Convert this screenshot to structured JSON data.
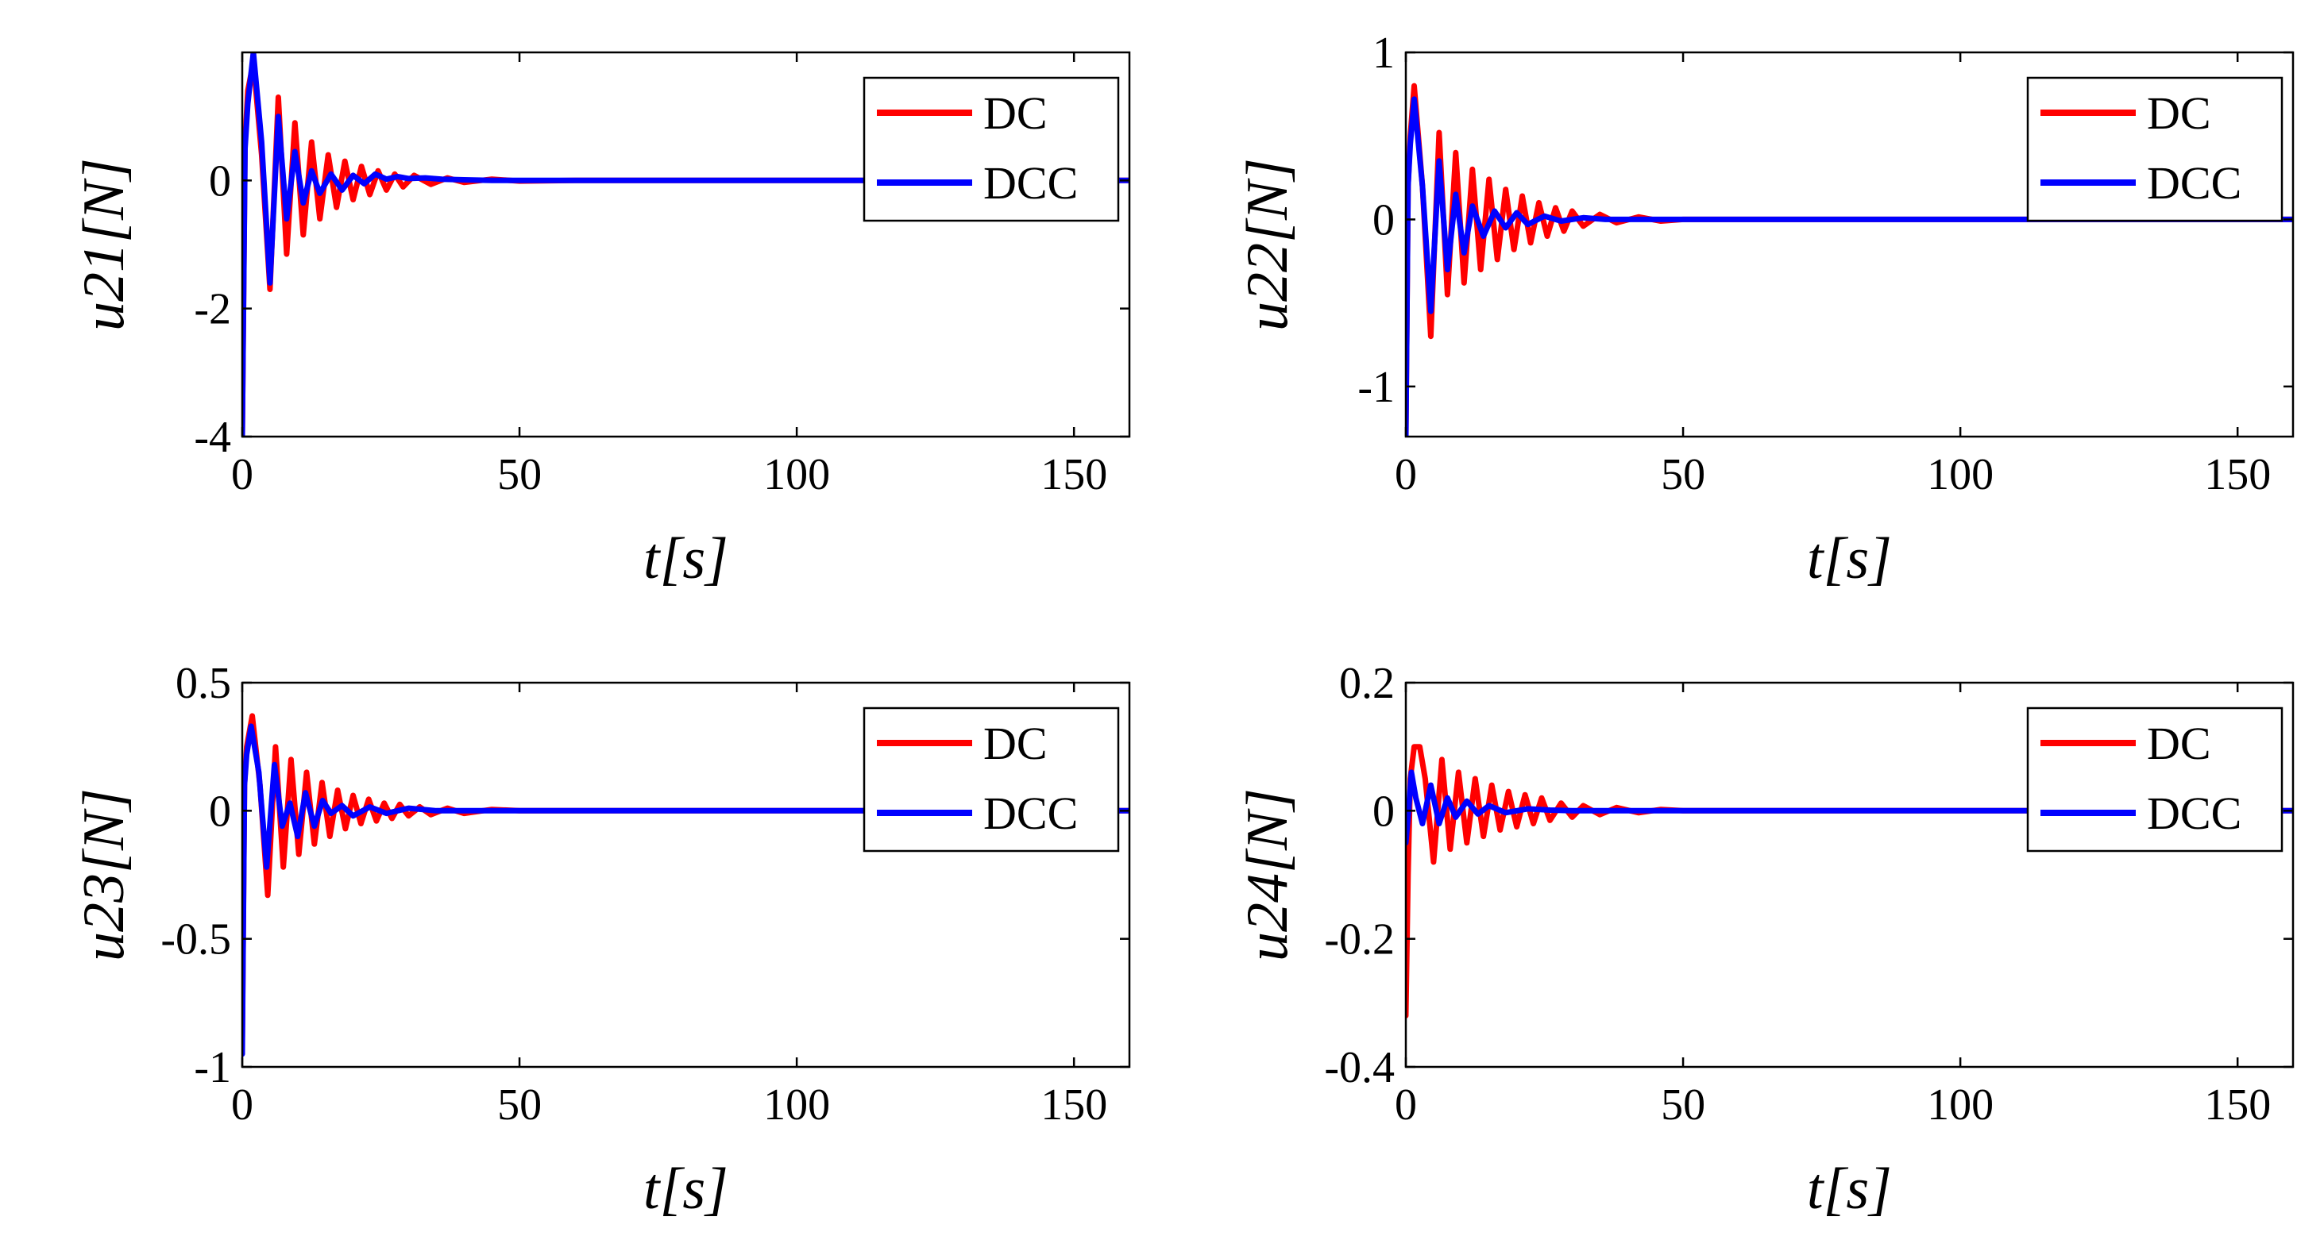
{
  "figure": {
    "background": "#ffffff"
  },
  "chart_data": [
    {
      "type": "line",
      "ylabel": "u21[N]",
      "xlabel": "t[s]",
      "xlim": [
        0,
        160
      ],
      "ylim": [
        -4,
        2
      ],
      "xticks": [
        0,
        50,
        100,
        150
      ],
      "xtick_labels": [
        "0",
        "50",
        "100",
        "150"
      ],
      "yticks": [
        -4,
        -2,
        0
      ],
      "ytick_labels": [
        "-4",
        "-2",
        "0"
      ],
      "legend": {
        "position": "top-right",
        "entries": [
          "DC",
          "DCC"
        ]
      },
      "series": [
        {
          "name": "DC",
          "color": "#ff0000",
          "x": [
            0,
            0.5,
            1,
            2,
            3.5,
            5,
            6.5,
            8,
            9.5,
            11,
            12.5,
            14,
            15.5,
            17,
            18.5,
            20,
            21.5,
            23,
            24.5,
            26,
            27.5,
            29,
            31,
            34,
            37,
            40,
            45,
            50,
            60,
            160
          ],
          "values": [
            -4,
            0.6,
            1.4,
            1.85,
            0.4,
            -1.7,
            1.3,
            -1.15,
            0.9,
            -0.85,
            0.6,
            -0.6,
            0.4,
            -0.42,
            0.3,
            -0.3,
            0.22,
            -0.22,
            0.15,
            -0.15,
            0.1,
            -0.1,
            0.08,
            -0.06,
            0.04,
            -0.03,
            0.02,
            -0.01,
            0,
            0
          ]
        },
        {
          "name": "DCC",
          "color": "#0000ff",
          "x": [
            0,
            0.5,
            1,
            2,
            3.5,
            5,
            6.5,
            8,
            9.5,
            11,
            12.5,
            14,
            16,
            18,
            20,
            22,
            24,
            26,
            28,
            30,
            33,
            36,
            40,
            45,
            50,
            160
          ],
          "values": [
            -4,
            0.5,
            1.2,
            2.0,
            0.6,
            -1.6,
            1.0,
            -0.6,
            0.45,
            -0.35,
            0.15,
            -0.2,
            0.1,
            -0.15,
            0.08,
            -0.05,
            0.1,
            0.02,
            0.06,
            0.03,
            0.04,
            0.02,
            0.01,
            0,
            0,
            0
          ]
        }
      ]
    },
    {
      "type": "line",
      "ylabel": "u22[N]",
      "xlabel": "t[s]",
      "xlim": [
        0,
        160
      ],
      "ylim": [
        -1.3,
        1
      ],
      "xticks": [
        0,
        50,
        100,
        150
      ],
      "xtick_labels": [
        "0",
        "50",
        "100",
        "150"
      ],
      "yticks": [
        -1,
        0,
        1
      ],
      "ytick_labels": [
        "-1",
        "0",
        "1"
      ],
      "legend": {
        "position": "top-right",
        "entries": [
          "DC",
          "DCC"
        ]
      },
      "series": [
        {
          "name": "DC",
          "color": "#ff0000",
          "x": [
            0,
            0.4,
            0.8,
            1.5,
            3,
            4.5,
            6,
            7.5,
            9,
            10.5,
            12,
            13.5,
            15,
            16.5,
            18,
            19.5,
            21,
            22.5,
            24,
            25.5,
            27,
            28.5,
            30,
            32,
            35,
            38,
            42,
            46,
            50,
            60,
            160
          ],
          "values": [
            -1.3,
            0.2,
            0.5,
            0.8,
            0.2,
            -0.7,
            0.52,
            -0.45,
            0.4,
            -0.38,
            0.3,
            -0.3,
            0.24,
            -0.24,
            0.18,
            -0.18,
            0.14,
            -0.14,
            0.1,
            -0.1,
            0.07,
            -0.07,
            0.05,
            -0.04,
            0.03,
            -0.02,
            0.015,
            -0.01,
            0,
            0,
            0
          ]
        },
        {
          "name": "DCC",
          "color": "#0000ff",
          "x": [
            0,
            0.4,
            0.8,
            1.5,
            3,
            4.5,
            6,
            7.5,
            9,
            10.5,
            12,
            14,
            16,
            18,
            20,
            22,
            25,
            28,
            32,
            36,
            42,
            50,
            160
          ],
          "values": [
            -1.3,
            0.2,
            0.45,
            0.72,
            0.2,
            -0.55,
            0.35,
            -0.3,
            0.15,
            -0.2,
            0.08,
            -0.1,
            0.05,
            -0.05,
            0.04,
            -0.03,
            0.02,
            -0.01,
            0.01,
            0,
            0,
            0,
            0
          ]
        }
      ]
    },
    {
      "type": "line",
      "ylabel": "u23[N]",
      "xlabel": "t[s]",
      "xlim": [
        0,
        160
      ],
      "ylim": [
        -1,
        0.5
      ],
      "xticks": [
        0,
        50,
        100,
        150
      ],
      "xtick_labels": [
        "0",
        "50",
        "100",
        "150"
      ],
      "yticks": [
        -1,
        -0.5,
        0,
        0.5
      ],
      "ytick_labels": [
        "-1",
        "-0.5",
        "0",
        "0.5"
      ],
      "legend": {
        "position": "top-right",
        "entries": [
          "DC",
          "DCC"
        ]
      },
      "series": [
        {
          "name": "DC",
          "color": "#ff0000",
          "x": [
            0,
            0.4,
            0.8,
            1.8,
            3.2,
            4.6,
            6,
            7.4,
            8.8,
            10.2,
            11.6,
            13,
            14.4,
            15.8,
            17.2,
            18.6,
            20,
            21.4,
            22.8,
            24.2,
            25.6,
            27,
            28.4,
            30,
            32,
            34,
            37,
            40,
            45,
            50,
            60,
            160
          ],
          "values": [
            -0.9,
            0.1,
            0.25,
            0.37,
            0.1,
            -0.33,
            0.25,
            -0.22,
            0.2,
            -0.17,
            0.15,
            -0.13,
            0.11,
            -0.1,
            0.08,
            -0.07,
            0.06,
            -0.05,
            0.045,
            -0.04,
            0.03,
            -0.03,
            0.025,
            -0.02,
            0.015,
            -0.015,
            0.01,
            -0.01,
            0.005,
            0,
            0,
            0
          ]
        },
        {
          "name": "DCC",
          "color": "#0000ff",
          "x": [
            0,
            0.4,
            0.8,
            1.6,
            3,
            4.4,
            5.8,
            7.2,
            8.6,
            10,
            11.4,
            13,
            14.5,
            16,
            18,
            20,
            23,
            26,
            30,
            35,
            40,
            50,
            160
          ],
          "values": [
            -0.95,
            0.1,
            0.22,
            0.33,
            0.15,
            -0.22,
            0.18,
            -0.06,
            0.03,
            -0.1,
            0.07,
            -0.06,
            0.04,
            -0.01,
            0.02,
            -0.02,
            0.015,
            -0.01,
            0.01,
            0,
            0,
            0,
            0
          ]
        }
      ]
    },
    {
      "type": "line",
      "ylabel": "u24[N]",
      "xlabel": "t[s]",
      "xlim": [
        0,
        160
      ],
      "ylim": [
        -0.4,
        0.2
      ],
      "xticks": [
        0,
        50,
        100,
        150
      ],
      "xtick_labels": [
        "0",
        "50",
        "100",
        "150"
      ],
      "yticks": [
        -0.4,
        -0.2,
        0,
        0.2
      ],
      "ytick_labels": [
        "-0.4",
        "-0.2",
        "0",
        "0.2"
      ],
      "legend": {
        "position": "top-right",
        "entries": [
          "DC",
          "DCC"
        ]
      },
      "series": [
        {
          "name": "DC",
          "color": "#ff0000",
          "x": [
            0,
            0.4,
            0.8,
            1.5,
            2.5,
            3.5,
            5,
            6.5,
            8,
            9.5,
            11,
            12.5,
            14,
            15.5,
            17,
            18.5,
            20,
            21.5,
            23,
            24.5,
            26,
            28,
            30,
            32,
            35,
            38,
            42,
            46,
            50,
            60,
            160
          ],
          "values": [
            -0.32,
            -0.1,
            0.05,
            0.1,
            0.1,
            0.05,
            -0.08,
            0.08,
            -0.06,
            0.06,
            -0.05,
            0.05,
            -0.04,
            0.04,
            -0.03,
            0.03,
            -0.025,
            0.025,
            -0.02,
            0.02,
            -0.015,
            0.012,
            -0.01,
            0.008,
            -0.006,
            0.005,
            -0.003,
            0.002,
            0,
            0,
            0
          ]
        },
        {
          "name": "DCC",
          "color": "#0000ff",
          "x": [
            0,
            0.5,
            1,
            1.8,
            3,
            4.5,
            6,
            7.5,
            9,
            11,
            13,
            15,
            18,
            22,
            26,
            30,
            40,
            50,
            160
          ],
          "values": [
            -0.05,
            0.0,
            0.06,
            0.02,
            -0.02,
            0.04,
            -0.02,
            0.02,
            -0.01,
            0.015,
            -0.005,
            0.008,
            -0.003,
            0.003,
            0.001,
            0,
            0,
            0,
            0
          ]
        }
      ]
    }
  ]
}
